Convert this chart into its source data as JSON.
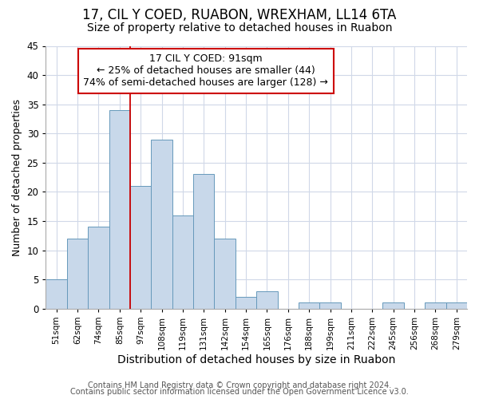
{
  "title1": "17, CIL Y COED, RUABON, WREXHAM, LL14 6TA",
  "title2": "Size of property relative to detached houses in Ruabon",
  "xlabel": "Distribution of detached houses by size in Ruabon",
  "ylabel": "Number of detached properties",
  "categories": [
    "51sqm",
    "62sqm",
    "74sqm",
    "85sqm",
    "97sqm",
    "108sqm",
    "119sqm",
    "131sqm",
    "142sqm",
    "154sqm",
    "165sqm",
    "176sqm",
    "188sqm",
    "199sqm",
    "211sqm",
    "222sqm",
    "245sqm",
    "256sqm",
    "268sqm",
    "279sqm"
  ],
  "values": [
    5,
    12,
    14,
    34,
    21,
    29,
    16,
    23,
    12,
    2,
    3,
    0,
    1,
    1,
    0,
    0,
    1,
    0,
    1,
    1
  ],
  "bar_color": "#c8d8ea",
  "bar_edge_color": "#6699bb",
  "vline_color": "#cc0000",
  "vline_x_idx": 4,
  "annotation_text": "17 CIL Y COED: 91sqm\n← 25% of detached houses are smaller (44)\n74% of semi-detached houses are larger (128) →",
  "annotation_box_color": "#ffffff",
  "annotation_box_edge": "#cc0000",
  "footer1": "Contains HM Land Registry data © Crown copyright and database right 2024.",
  "footer2": "Contains public sector information licensed under the Open Government Licence v3.0.",
  "ylim": [
    0,
    45
  ],
  "yticks": [
    0,
    5,
    10,
    15,
    20,
    25,
    30,
    35,
    40,
    45
  ],
  "bg_color": "#ffffff",
  "plot_bg_color": "#ffffff",
  "grid_color": "#d0d8e8",
  "title1_fontsize": 12,
  "title2_fontsize": 10,
  "annotation_fontsize": 9,
  "ylabel_fontsize": 9,
  "xlabel_fontsize": 10,
  "footer_fontsize": 7
}
